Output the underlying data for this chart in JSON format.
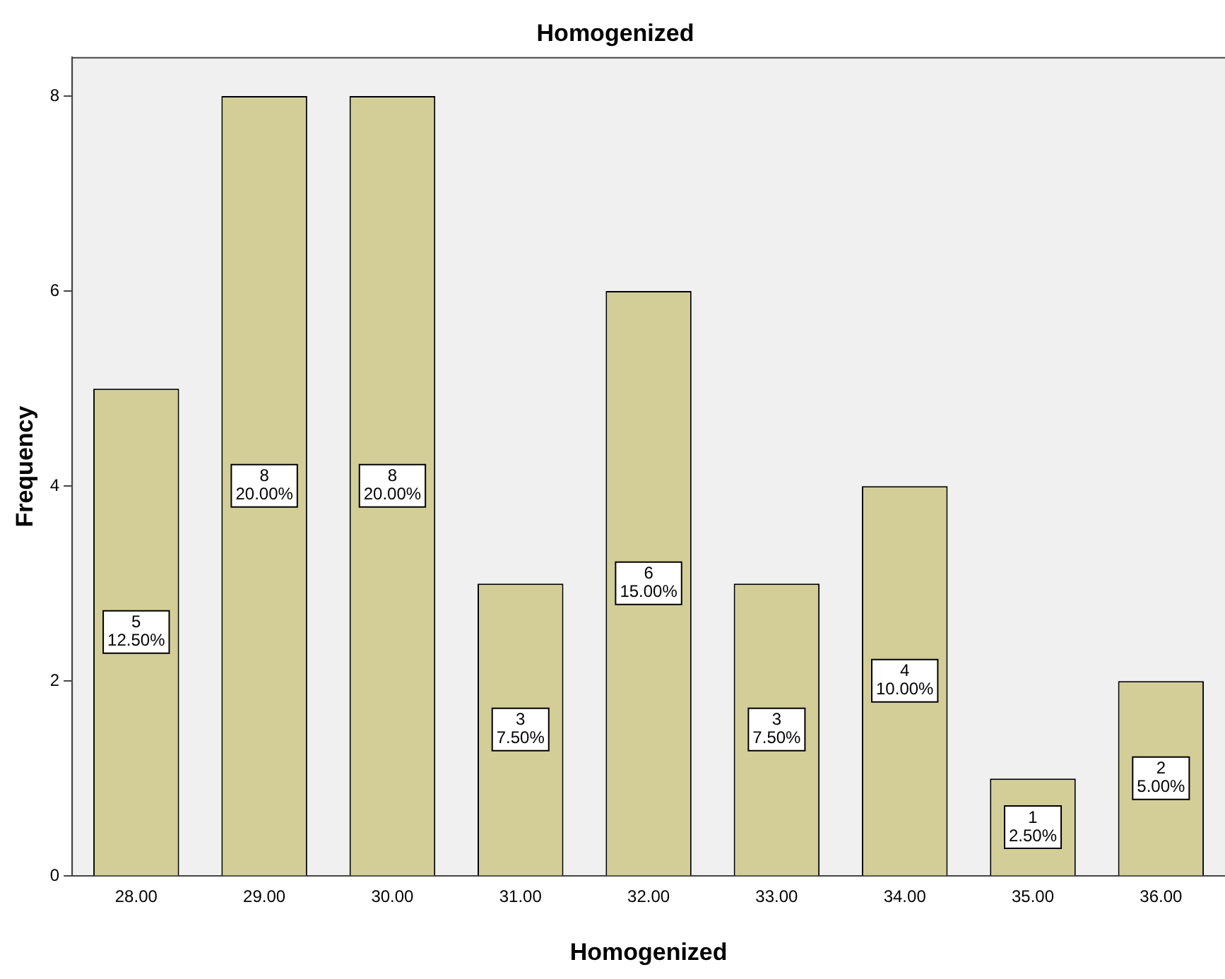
{
  "chart_data": {
    "type": "bar",
    "title": "Homogenized",
    "xlabel": "Homogenized",
    "ylabel": "Frequency",
    "categories": [
      "28.00",
      "29.00",
      "30.00",
      "31.00",
      "32.00",
      "33.00",
      "34.00",
      "35.00",
      "36.00"
    ],
    "values": [
      5,
      8,
      8,
      3,
      6,
      3,
      4,
      1,
      2
    ],
    "color": "#d3ce97",
    "value_labels": [
      "5\n12.50%",
      "8\n20.00%",
      "8\n20.00%",
      "3\n7.50%",
      "6\n15.00%",
      "3\n7.50%",
      "4\n10.00%",
      "1\n2.50%",
      "2\n5.00%"
    ],
    "ylim": [
      0,
      8.4
    ],
    "yticks": [
      0,
      2,
      4,
      6,
      8
    ]
  }
}
